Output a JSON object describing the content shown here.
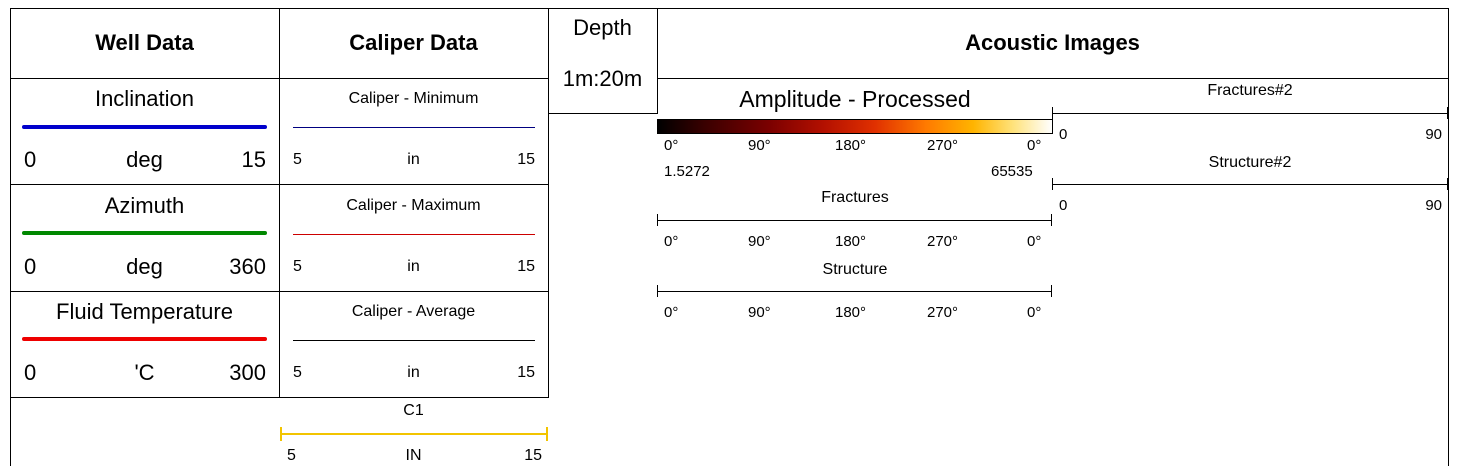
{
  "headers": {
    "well_data": "Well Data",
    "caliper_data": "Caliper Data",
    "depth_line1": "Depth",
    "depth_line2": "1m:20m",
    "acoustic_images": "Acoustic Images"
  },
  "well_tracks": [
    {
      "name": "Inclination",
      "min": "0",
      "unit": "deg",
      "max": "15",
      "color": "#0000cc"
    },
    {
      "name": "Azimuth",
      "min": "0",
      "unit": "deg",
      "max": "360",
      "color": "#008800"
    },
    {
      "name": "Fluid Temperature",
      "min": "0",
      "unit": "'C",
      "max": "300",
      "color": "#ee0000"
    }
  ],
  "caliper_tracks": [
    {
      "name": "Caliper - Minimum",
      "min": "5",
      "unit": "in",
      "max": "15",
      "color": "#000080"
    },
    {
      "name": "Caliper - Maximum",
      "min": "5",
      "unit": "in",
      "max": "15",
      "color": "#cc0000"
    },
    {
      "name": "Caliper - Average",
      "min": "5",
      "unit": "in",
      "max": "15",
      "color": "#000000"
    }
  ],
  "c1_track": {
    "name": "C1",
    "min": "5",
    "unit": "IN",
    "max": "15",
    "color": "#f2c400"
  },
  "amplitude": {
    "title": "Amplitude - Processed",
    "angle_labels": [
      "0°",
      "90°",
      "180°",
      "270°",
      "0°"
    ],
    "range_min": "1.5272",
    "range_max": "65535"
  },
  "fractures": {
    "title": "Fractures",
    "angle_labels": [
      "0°",
      "90°",
      "180°",
      "270°",
      "0°"
    ]
  },
  "structure": {
    "title": "Structure",
    "angle_labels": [
      "0°",
      "90°",
      "180°",
      "270°",
      "0°"
    ]
  },
  "fractures2": {
    "title": "Fractures#2",
    "min": "0",
    "max": "90"
  },
  "structure2": {
    "title": "Structure#2",
    "min": "0",
    "max": "90"
  }
}
